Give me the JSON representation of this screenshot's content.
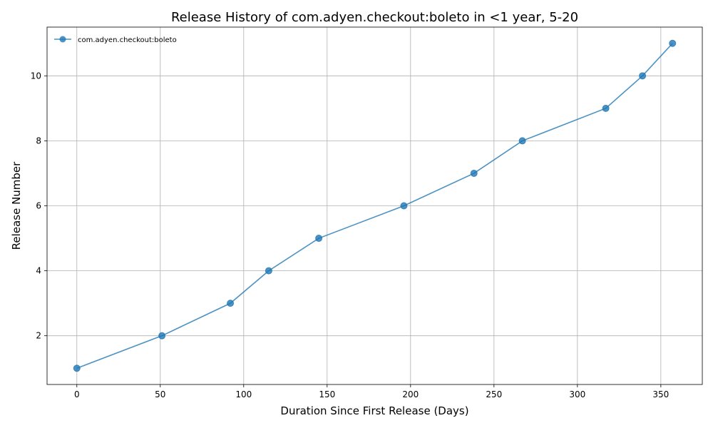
{
  "chart_data": {
    "type": "line",
    "title": "Release History of com.adyen.checkout:boleto in <1 year, 5-20",
    "xlabel": "Duration Since First Release (Days)",
    "ylabel": "Release Number",
    "xlim": [
      -17.85,
      374.85
    ],
    "ylim": [
      0.5,
      11.5
    ],
    "x_ticks": [
      0,
      50,
      100,
      150,
      200,
      250,
      300,
      350
    ],
    "y_ticks": [
      2,
      4,
      6,
      8,
      10
    ],
    "grid": true,
    "legend_position": "top-left",
    "series": [
      {
        "name": "com.adyen.checkout:boleto",
        "color": "#1f77b4",
        "marker": "circle",
        "x": [
          0,
          51,
          92,
          115,
          145,
          196,
          238,
          267,
          317,
          339,
          357
        ],
        "y": [
          1,
          2,
          3,
          4,
          5,
          6,
          7,
          8,
          9,
          10,
          11
        ]
      }
    ]
  }
}
